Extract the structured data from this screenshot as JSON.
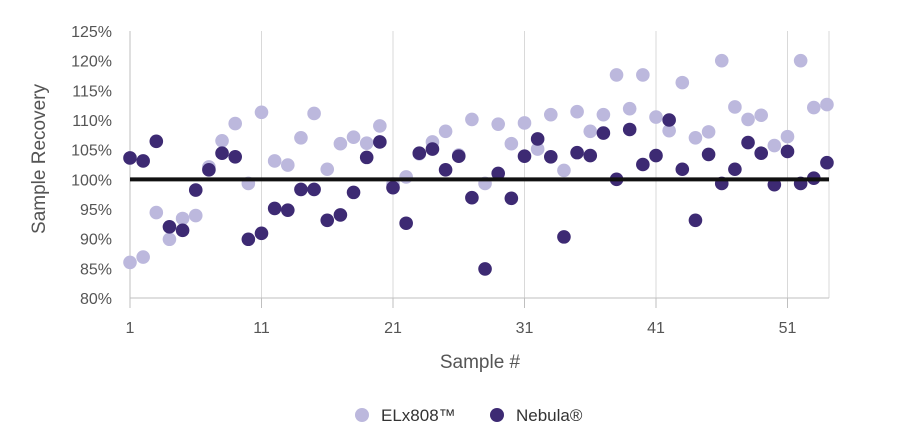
{
  "chart_data": {
    "type": "scatter",
    "title": "",
    "xlabel": "Sample #",
    "ylabel": "Sample Recovery",
    "xlim": [
      1,
      54
    ],
    "ylim": [
      80,
      125
    ],
    "x_ticks": [
      "1",
      "11",
      "21",
      "31",
      "41",
      "51"
    ],
    "y_ticks": [
      "80%",
      "85%",
      "90%",
      "95%",
      "100%",
      "105%",
      "110%",
      "115%",
      "120%",
      "125%"
    ],
    "grid": "vertical gridlines at x = 1, 11, 21, 31, 41, 51",
    "reference_line": {
      "y": 100
    },
    "legend": {
      "placement": "bottom-center"
    },
    "series": [
      {
        "name": "ELx808™",
        "color": "#bcb8dd",
        "x": [
          1,
          2,
          3,
          4,
          5,
          6,
          7,
          8,
          9,
          10,
          11,
          12,
          13,
          14,
          15,
          16,
          17,
          18,
          19,
          20,
          21,
          22,
          23,
          24,
          25,
          26,
          27,
          28,
          29,
          30,
          31,
          32,
          33,
          34,
          35,
          36,
          37,
          38,
          39,
          40,
          41,
          42,
          43,
          44,
          45,
          46,
          47,
          48,
          49,
          50,
          51,
          52,
          53,
          54
        ],
        "y": [
          86.0,
          86.9,
          94.4,
          89.9,
          93.4,
          93.9,
          102.1,
          106.5,
          109.4,
          99.3,
          111.3,
          103.1,
          102.4,
          107.0,
          111.1,
          101.7,
          106.0,
          107.1,
          106.1,
          109.0,
          99.2,
          100.4,
          104.3,
          106.3,
          108.1,
          104.1,
          110.1,
          99.3,
          109.3,
          106.0,
          109.5,
          105.1,
          110.9,
          101.5,
          111.4,
          108.1,
          110.9,
          117.6,
          111.9,
          117.6,
          110.5,
          108.2,
          116.3,
          107.0,
          108.0,
          120.0,
          112.2,
          110.1,
          110.8,
          105.7,
          107.2,
          120.0,
          112.1,
          112.6
        ]
      },
      {
        "name": "Nebula®",
        "color": "#3d2a73",
        "x": [
          1,
          2,
          3,
          4,
          5,
          6,
          7,
          8,
          9,
          10,
          11,
          12,
          13,
          14,
          15,
          16,
          17,
          18,
          19,
          20,
          21,
          22,
          23,
          24,
          25,
          26,
          27,
          28,
          29,
          30,
          31,
          32,
          33,
          34,
          35,
          36,
          37,
          38,
          39,
          40,
          41,
          42,
          43,
          44,
          45,
          46,
          47,
          48,
          49,
          50,
          51,
          52,
          53,
          54
        ],
        "y": [
          103.6,
          103.1,
          106.4,
          92.0,
          91.4,
          98.2,
          101.6,
          104.4,
          103.8,
          89.9,
          90.9,
          95.1,
          94.8,
          98.3,
          98.3,
          93.1,
          94.0,
          97.8,
          103.7,
          106.3,
          98.6,
          92.6,
          104.4,
          105.1,
          101.6,
          103.9,
          96.9,
          84.9,
          101.0,
          96.8,
          103.9,
          106.8,
          103.8,
          90.3,
          104.5,
          104.0,
          107.8,
          100.0,
          108.4,
          102.5,
          104.0,
          110.0,
          101.7,
          93.1,
          104.2,
          99.3,
          101.7,
          106.2,
          104.4,
          99.1,
          104.7,
          99.3,
          100.2,
          102.8
        ]
      }
    ]
  }
}
